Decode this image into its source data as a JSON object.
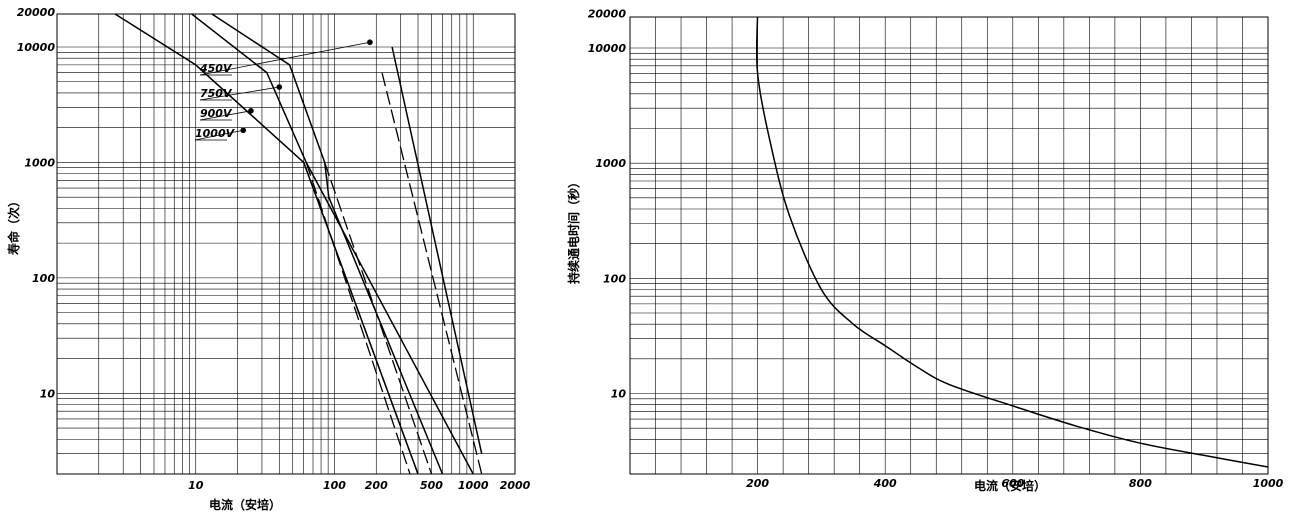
{
  "chart_data": [
    {
      "type": "line",
      "xscale": "log",
      "yscale": "log",
      "xlim": [
        1,
        2000
      ],
      "ylim": [
        2,
        20000
      ],
      "xlabel": "电流（安培）",
      "ylabel": "寿命（次）",
      "xticks": [
        {
          "value": 10,
          "label": "10"
        },
        {
          "value": 100,
          "label": "100"
        },
        {
          "value": 200,
          "label": "200"
        },
        {
          "value": 500,
          "label": "500"
        },
        {
          "value": 1000,
          "label": "1000"
        },
        {
          "value": 2000,
          "label": "2000"
        }
      ],
      "yticks": [
        {
          "value": 10,
          "label": "10"
        },
        {
          "value": 100,
          "label": "100"
        },
        {
          "value": 1000,
          "label": "1000"
        },
        {
          "value": 10000,
          "label": "10000"
        },
        {
          "value": 20000,
          "label": "20000"
        }
      ],
      "series": [
        {
          "name": "450V",
          "marker": {
            "x": 180,
            "y": 11000
          },
          "solid": [
            [
              12.5,
              20000
            ],
            [
              47.5,
              7000
            ],
            [
              85,
              1000
            ],
            [
              91,
              500
            ],
            [
              600,
              2
            ]
          ],
          "dashed": [
            [
              85,
              1000
            ],
            [
              500,
              2
            ]
          ]
        },
        {
          "name": "750V",
          "marker": {
            "x": 40,
            "y": 4500
          },
          "solid": [
            [
              9,
              20000
            ],
            [
              32.5,
              6000
            ],
            [
              62.5,
              1000
            ],
            [
              1000,
              2
            ]
          ],
          "dashed": [
            [
              62.5,
              1000
            ],
            [
              350,
              2
            ]
          ]
        },
        {
          "name": "900V",
          "marker": {
            "x": 25,
            "y": 2800
          },
          "solid": [
            [
              260,
              10000
            ],
            [
              1150,
              3
            ]
          ],
          "dashed": [
            [
              220,
              6000
            ],
            [
              1150,
              2
            ]
          ]
        },
        {
          "name": "1000V",
          "marker": {
            "x": 22,
            "y": 1900
          },
          "solid": [
            [
              2.5,
              20000
            ],
            [
              10,
              7000
            ],
            [
              60,
              1000
            ],
            [
              400,
              2
            ]
          ],
          "dashed": [
            [
              60,
              1000
            ],
            [
              400,
              2
            ]
          ]
        }
      ]
    },
    {
      "type": "line",
      "xscale": "linear",
      "yscale": "log",
      "xlim": [
        0,
        1000
      ],
      "ylim": [
        2,
        20000
      ],
      "xlabel": "电流（安培）",
      "ylabel": "持续通电时间（秒）",
      "xticks": [
        {
          "value": 200,
          "label": "200"
        },
        {
          "value": 400,
          "label": "400"
        },
        {
          "value": 600,
          "label": "600"
        },
        {
          "value": 800,
          "label": "800"
        },
        {
          "value": 1000,
          "label": "1000"
        }
      ],
      "yticks": [
        {
          "value": 10,
          "label": "10"
        },
        {
          "value": 100,
          "label": "100"
        },
        {
          "value": 1000,
          "label": "1000"
        },
        {
          "value": 10000,
          "label": "10000"
        },
        {
          "value": 20000,
          "label": "20000"
        }
      ],
      "series": [
        {
          "points": [
            [
              200,
              20000
            ],
            [
              200,
              6000
            ],
            [
              220,
              1500
            ],
            [
              250,
              350
            ],
            [
              300,
              80
            ],
            [
              350,
              40
            ],
            [
              400,
              26
            ],
            [
              450,
              17
            ],
            [
              500,
              12
            ],
            [
              600,
              7.8
            ],
            [
              700,
              5.2
            ],
            [
              800,
              3.7
            ],
            [
              900,
              2.9
            ],
            [
              1000,
              2.3
            ]
          ]
        }
      ]
    }
  ]
}
